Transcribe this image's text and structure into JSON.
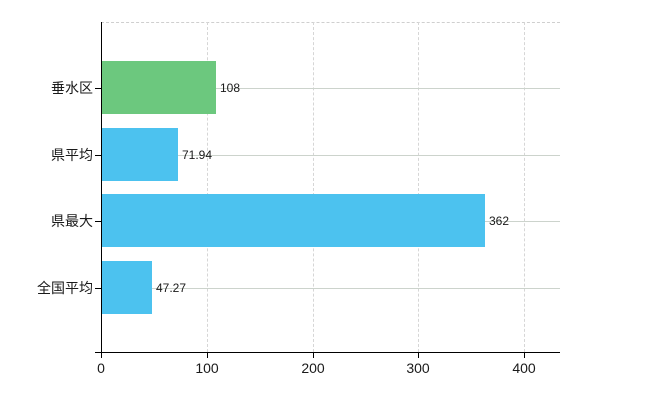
{
  "chart_data": {
    "type": "bar",
    "orientation": "horizontal",
    "title": "",
    "categories": [
      "垂水区",
      "県平均",
      "県最大",
      "全国平均"
    ],
    "values": [
      108,
      71.94,
      362,
      47.27
    ],
    "value_labels": [
      "108",
      "71.94",
      "362",
      "47.27"
    ],
    "series": [
      {
        "name": "district-value",
        "values": [
          108
        ]
      },
      {
        "name": "comparison-values",
        "values": [
          71.94,
          362,
          47.27
        ]
      }
    ],
    "bar_colors": [
      "#6cc87e",
      "#4cc2ef",
      "#4cc2ef",
      "#4cc2ef"
    ],
    "xlim": [
      0,
      400
    ],
    "x_ticks": [
      0,
      100,
      200,
      300,
      400
    ],
    "x_tick_labels": [
      "0",
      "100",
      "200",
      "300",
      "400"
    ],
    "grid": "on",
    "legend": "none",
    "background": "#ffffff",
    "axis_color": "#000000",
    "grid_color": "#d6d6d6",
    "category_grid_color": "#ccd3cc",
    "text_color": "#1a1a1a"
  }
}
